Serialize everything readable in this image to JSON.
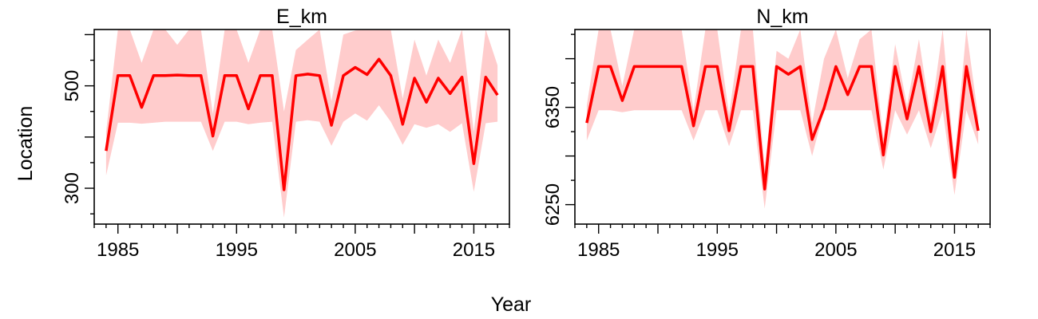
{
  "figure": {
    "xlabel": "Year",
    "ylabel": "Location"
  },
  "chart_data": [
    {
      "type": "area",
      "title": "E_km",
      "x_ticks": [
        1985,
        1995,
        2005,
        2015
      ],
      "y_ticks": [
        300,
        500
      ],
      "xlim": [
        1983,
        2018
      ],
      "ylim": [
        230,
        610
      ],
      "colors": {
        "line": "#ff0000",
        "band": "#ffcccc"
      },
      "series": [
        {
          "x": [
            1984,
            1985,
            1986,
            1987,
            1988,
            1989,
            1990,
            1991,
            1992,
            1993,
            1994,
            1995,
            1996,
            1997,
            1998,
            1999,
            2000,
            2001,
            2002,
            2003,
            2004,
            2005,
            2006,
            2007,
            2008,
            2009,
            2010,
            2011,
            2012,
            2013,
            2014,
            2015,
            2016,
            2017
          ],
          "y": [
            373,
            520,
            520,
            458,
            520,
            520,
            521,
            520,
            520,
            402,
            520,
            520,
            455,
            520,
            520,
            297,
            520,
            523,
            520,
            423,
            520,
            536,
            522,
            552,
            520,
            425,
            515,
            468,
            515,
            485,
            517,
            348,
            517,
            482
          ],
          "lower": [
            325,
            428,
            428,
            426,
            428,
            430,
            430,
            430,
            430,
            373,
            430,
            430,
            425,
            428,
            430,
            243,
            430,
            433,
            430,
            383,
            430,
            446,
            432,
            462,
            430,
            385,
            425,
            418,
            425,
            410,
            427,
            293,
            427,
            430
          ],
          "upper": [
            410,
            610,
            610,
            545,
            610,
            610,
            580,
            610,
            610,
            445,
            610,
            610,
            545,
            610,
            610,
            450,
            570,
            590,
            610,
            470,
            600,
            608,
            610,
            610,
            610,
            475,
            590,
            520,
            590,
            545,
            610,
            410,
            610,
            540
          ]
        }
      ]
    },
    {
      "type": "area",
      "title": "N_km",
      "x_ticks": [
        1985,
        1995,
        2005,
        2015
      ],
      "y_ticks": [
        6250,
        6350
      ],
      "xlim": [
        1983,
        2018
      ],
      "ylim": [
        6230,
        6430
      ],
      "colors": {
        "line": "#ff0000",
        "band": "#ffcccc"
      },
      "series": [
        {
          "x": [
            1984,
            1985,
            1986,
            1987,
            1988,
            1989,
            1990,
            1991,
            1992,
            1993,
            1994,
            1995,
            1996,
            1997,
            1998,
            1999,
            2000,
            2001,
            2002,
            2003,
            2004,
            2005,
            2006,
            2007,
            2008,
            2009,
            2010,
            2011,
            2012,
            2013,
            2014,
            2015,
            2016,
            2017
          ],
          "y": [
            6334,
            6392,
            6392,
            6357,
            6392,
            6392,
            6392,
            6392,
            6392,
            6331,
            6392,
            6392,
            6326,
            6392,
            6392,
            6266,
            6392,
            6384,
            6392,
            6317,
            6349,
            6392,
            6363,
            6392,
            6392,
            6301,
            6392,
            6338,
            6392,
            6325,
            6392,
            6278,
            6392,
            6326
          ]
        }
      ],
      "band": {
        "x": [
          1984,
          1985,
          1986,
          1987,
          1988,
          1989,
          1990,
          1991,
          1992,
          1993,
          1994,
          1995,
          1996,
          1997,
          1998,
          1999,
          2000,
          2001,
          2002,
          2003,
          2004,
          2005,
          2006,
          2007,
          2008,
          2009,
          2010,
          2011,
          2012,
          2013,
          2014,
          2015,
          2016,
          2017
        ],
        "lower": [
          6316,
          6347,
          6347,
          6345,
          6347,
          6347,
          6347,
          6347,
          6347,
          6316,
          6347,
          6347,
          6310,
          6347,
          6347,
          6246,
          6347,
          6347,
          6347,
          6300,
          6347,
          6347,
          6347,
          6347,
          6347,
          6286,
          6347,
          6322,
          6347,
          6308,
          6347,
          6260,
          6347,
          6312
        ],
        "upper": [
          6352,
          6430,
          6430,
          6372,
          6430,
          6430,
          6430,
          6430,
          6430,
          6347,
          6430,
          6430,
          6343,
          6430,
          6430,
          6287,
          6408,
          6400,
          6430,
          6334,
          6400,
          6430,
          6380,
          6420,
          6430,
          6318,
          6415,
          6352,
          6420,
          6340,
          6430,
          6295,
          6430,
          6340
        ]
      }
    }
  ]
}
